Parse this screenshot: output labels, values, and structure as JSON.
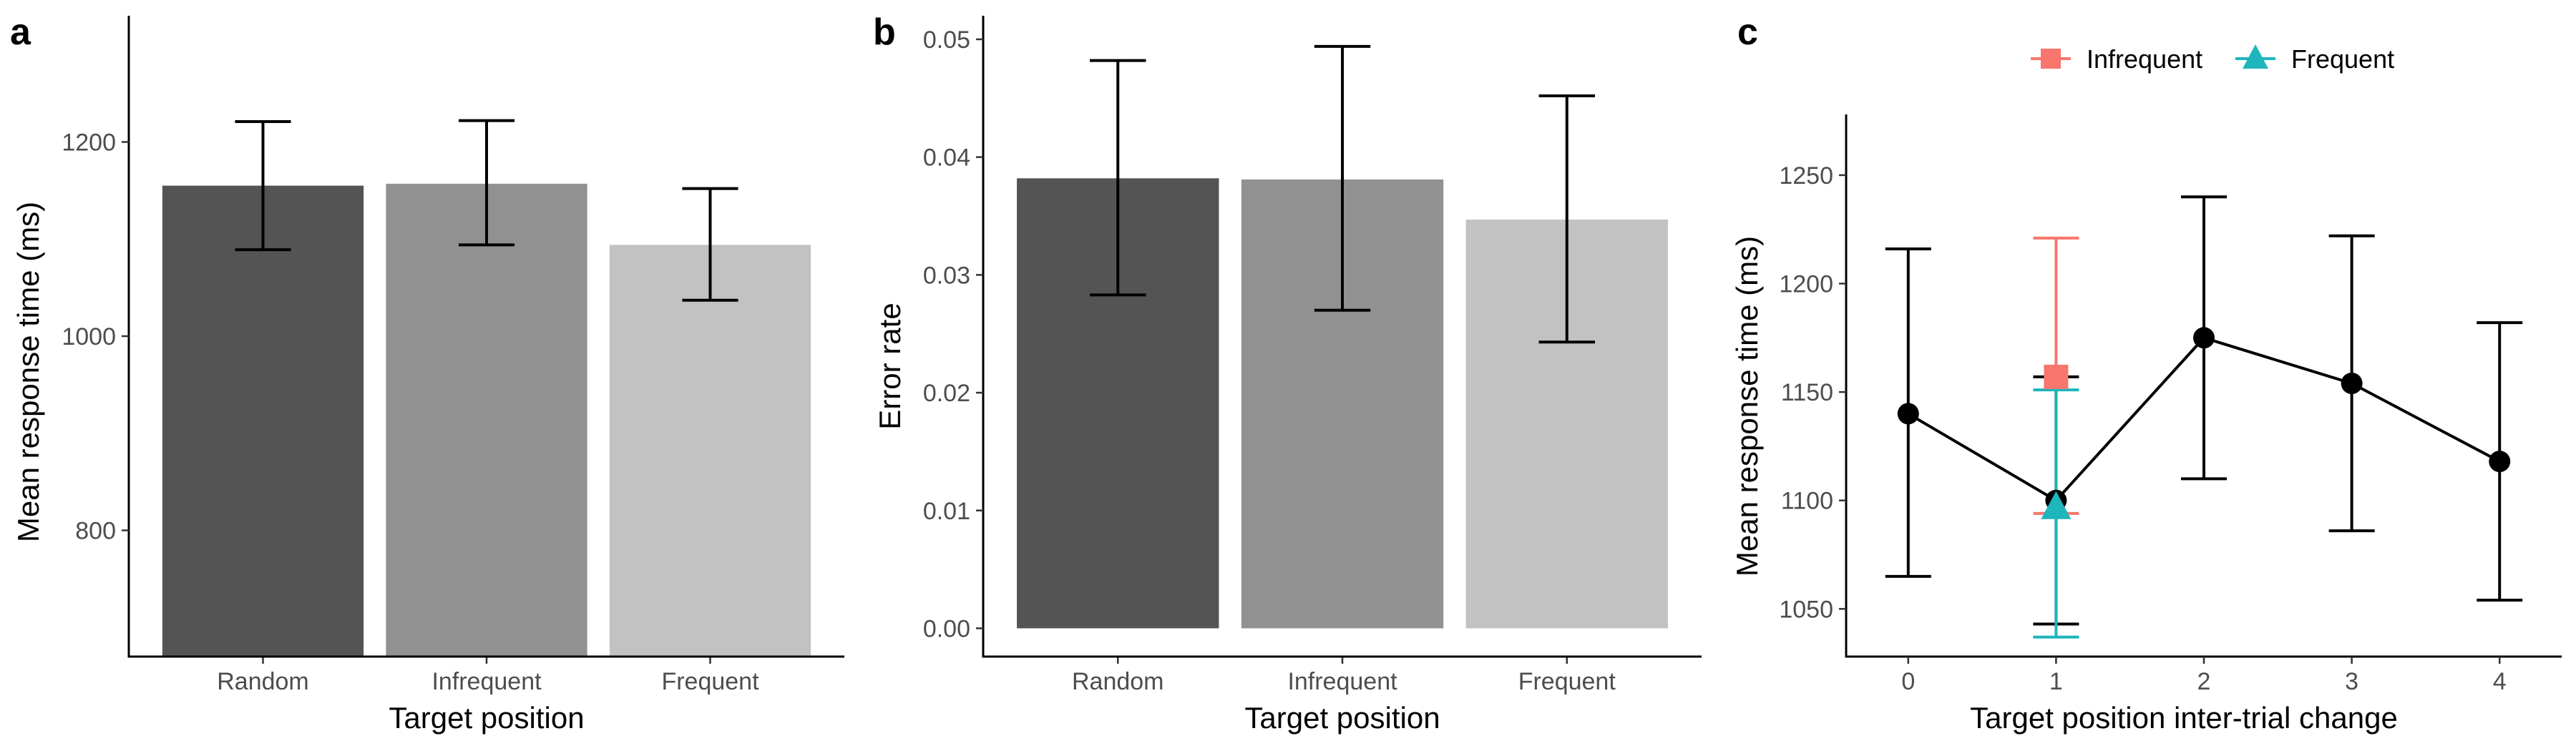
{
  "chart_data": [
    {
      "id": "a",
      "type": "bar",
      "panel_label": "a",
      "xlabel": "Target position",
      "ylabel": "Mean response time (ms)",
      "categories": [
        "Random",
        "Infrequent",
        "Frequent"
      ],
      "values": [
        1155,
        1157,
        1094
      ],
      "error_low": [
        1089,
        1094,
        1037
      ],
      "error_high": [
        1221,
        1222,
        1152
      ],
      "bar_colors": [
        "#545454",
        "#919191",
        "#c2c2c2"
      ],
      "ylim": [
        670,
        1330
      ],
      "yticks": [
        800,
        1000,
        1200
      ],
      "ytick_labels": [
        "800",
        "1000",
        "1200"
      ],
      "grid": false
    },
    {
      "id": "b",
      "type": "bar",
      "panel_label": "b",
      "xlabel": "Target position",
      "ylabel": "Error rate",
      "categories": [
        "Random",
        "Infrequent",
        "Frequent"
      ],
      "values": [
        0.0382,
        0.0381,
        0.0347
      ],
      "error_low": [
        0.0283,
        0.027,
        0.0243
      ],
      "error_high": [
        0.0482,
        0.0494,
        0.0452
      ],
      "bar_colors": [
        "#545454",
        "#919191",
        "#c2c2c2"
      ],
      "ylim": [
        -0.0024,
        0.052
      ],
      "yticks": [
        0,
        0.01,
        0.02,
        0.03,
        0.04,
        0.05
      ],
      "ytick_labels": [
        "0.00",
        "0.01",
        "0.02",
        "0.03",
        "0.04",
        "0.05"
      ],
      "grid": false
    },
    {
      "id": "c",
      "type": "line",
      "panel_label": "c",
      "xlabel": "Target position inter-trial change",
      "ylabel": "Mean response time (ms)",
      "x": [
        0,
        1,
        2,
        3,
        4
      ],
      "xtick_labels": [
        "0",
        "1",
        "2",
        "3",
        "4"
      ],
      "xlim": [
        -0.42,
        4.42
      ],
      "ylim": [
        1028,
        1278
      ],
      "yticks": [
        1050,
        1100,
        1150,
        1200,
        1250
      ],
      "ytick_labels": [
        "1050",
        "1100",
        "1150",
        "1200",
        "1250"
      ],
      "grid": false,
      "legend_position": "top",
      "series": [
        {
          "color": "#000000",
          "marker": "circle",
          "x": [
            0,
            1,
            2,
            3,
            4
          ],
          "y": [
            1140,
            1100,
            1175,
            1154,
            1118
          ],
          "error_low": [
            1065,
            1043,
            1110,
            1086,
            1054
          ],
          "error_high": [
            1216,
            1157,
            1240,
            1222,
            1182
          ]
        },
        {
          "name": "Infrequent",
          "color": "#f8766d",
          "marker": "square",
          "x": [
            1
          ],
          "y": [
            1157
          ],
          "error_low": [
            1094
          ],
          "error_high": [
            1221
          ]
        },
        {
          "name": "Frequent",
          "color": "#1eb5bc",
          "marker": "triangle",
          "x": [
            1
          ],
          "y": [
            1097
          ],
          "error_low": [
            1037
          ],
          "error_high": [
            1151
          ]
        }
      ]
    }
  ]
}
